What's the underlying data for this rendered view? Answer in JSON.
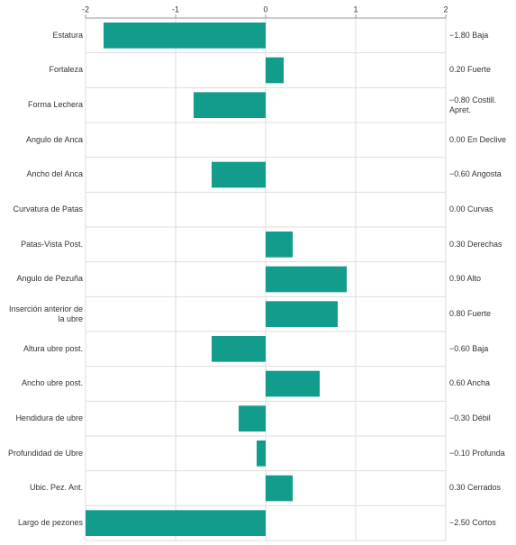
{
  "chart_data": {
    "type": "bar",
    "orientation": "horizontal",
    "categories": [
      "Estatura",
      "Fortaleza",
      "Forma Lechera",
      "Angulo de Anca",
      "Ancho del Anca",
      "Curvatura de Patas",
      "Patas-Vista Post.",
      "Angulo de Pezuña",
      "Inserción anterior de la ubre",
      "Altura ubre post.",
      "Ancho ubre post.",
      "Hendidura de ubre",
      "Profundidad de Ubre",
      "Ubic. Pez. Ant.",
      "Largo de pezones"
    ],
    "values": [
      -1.8,
      0.2,
      -0.8,
      0,
      -0.6,
      0,
      0.3,
      0.9,
      0.8,
      -0.6,
      0.6,
      -0.3,
      -0.1,
      0.3,
      -2.5
    ],
    "value_labels": [
      "−1.80 Baja",
      "0.20 Fuerte",
      "−0.80 Costill. Apret.",
      "0.00 En Declive",
      "−0.60 Angosta",
      "0.00 Curvas",
      "0.30 Derechas",
      "0.90 Alto",
      "0.80 Fuerte",
      "−0.60 Baja",
      "0.60 Ancha",
      "−0.30 Débil",
      "−0.10 Profunda",
      "0.30 Cerrados",
      "−2.50 Cortos"
    ],
    "color": "#129c8c",
    "xlim": [
      -2,
      2
    ],
    "xticks": [
      -2,
      -1,
      0,
      1,
      2
    ],
    "grid": true
  }
}
